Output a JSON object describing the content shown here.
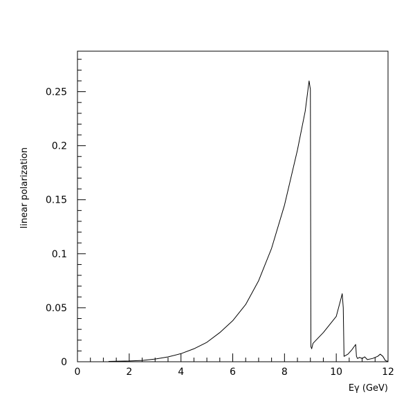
{
  "chart_data": {
    "type": "line",
    "title": "",
    "xlabel": "Eγ (GeV)",
    "ylabel": "linear polarization",
    "xlim": [
      0,
      12
    ],
    "ylim": [
      0,
      0.2875
    ],
    "x_ticks": [
      "0",
      "2",
      "4",
      "6",
      "8",
      "10",
      "12"
    ],
    "y_ticks": [
      "0",
      "0.05",
      "0.1",
      "0.15",
      "0.2",
      "0.25"
    ],
    "grid": false,
    "legend": "none",
    "series": [
      {
        "color": "#000000",
        "points": [
          [
            1.2,
            0.0003
          ],
          [
            1.5,
            0.0005
          ],
          [
            2.0,
            0.0007
          ],
          [
            2.5,
            0.0012
          ],
          [
            3.0,
            0.0025
          ],
          [
            3.5,
            0.0045
          ],
          [
            4.0,
            0.0075
          ],
          [
            4.5,
            0.012
          ],
          [
            5.0,
            0.018
          ],
          [
            5.5,
            0.027
          ],
          [
            6.0,
            0.038
          ],
          [
            6.5,
            0.053
          ],
          [
            7.0,
            0.075
          ],
          [
            7.5,
            0.105
          ],
          [
            8.0,
            0.145
          ],
          [
            8.5,
            0.196
          ],
          [
            8.8,
            0.232
          ],
          [
            8.95,
            0.26
          ],
          [
            9.0,
            0.252
          ],
          [
            9.02,
            0.014
          ],
          [
            9.05,
            0.012
          ],
          [
            9.1,
            0.017
          ],
          [
            9.5,
            0.027
          ],
          [
            10.0,
            0.042
          ],
          [
            10.2,
            0.06
          ],
          [
            10.23,
            0.063
          ],
          [
            10.27,
            0.05
          ],
          [
            10.3,
            0.005
          ],
          [
            10.45,
            0.007
          ],
          [
            10.6,
            0.011
          ],
          [
            10.75,
            0.016
          ],
          [
            10.78,
            0.005
          ],
          [
            10.82,
            0.003
          ],
          [
            10.9,
            0.004
          ],
          [
            11.0,
            0.003
          ],
          [
            11.1,
            0.0045
          ],
          [
            11.2,
            0.002
          ],
          [
            11.4,
            0.003
          ],
          [
            11.6,
            0.005
          ],
          [
            11.7,
            0.007
          ],
          [
            11.8,
            0.005
          ],
          [
            11.9,
            0.001
          ],
          [
            12.0,
            0.0003
          ]
        ]
      }
    ]
  }
}
